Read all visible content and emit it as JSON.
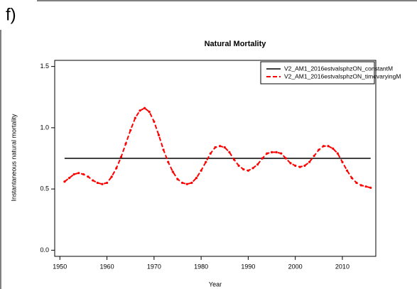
{
  "panel_label": "f)",
  "chart_data": {
    "type": "line",
    "title": "Natural Mortality",
    "x_label": "Year",
    "y_label": "Instantaneous natural mortality",
    "xlim": [
      1948.9,
      2017.1
    ],
    "xticks": [
      1950,
      1960,
      1970,
      1980,
      1990,
      2000,
      2010
    ],
    "ylim": [
      -0.05,
      1.55
    ],
    "yticks": [
      {
        "value": 0,
        "label": "0.0"
      },
      0.5,
      {
        "value": 1,
        "label": "1.0"
      },
      1.5
    ],
    "legend": "top-right",
    "series": [
      {
        "name": "V2_AM1_2016estvalsphzON_constantM",
        "color": "#000000",
        "dash": "solid",
        "x": [
          1951,
          2016
        ],
        "values": [
          0.75,
          0.75
        ]
      },
      {
        "name": "V2_AM1_2016estvalsphzON_timevaryingM",
        "color": "#ff0000",
        "dash": "dashed",
        "x": [
          1951,
          1952,
          1953,
          1954,
          1955,
          1956,
          1957,
          1958,
          1959,
          1960,
          1961,
          1962,
          1963,
          1964,
          1965,
          1966,
          1967,
          1968,
          1969,
          1970,
          1971,
          1972,
          1973,
          1974,
          1975,
          1976,
          1977,
          1978,
          1979,
          1980,
          1981,
          1982,
          1983,
          1984,
          1985,
          1986,
          1987,
          1988,
          1989,
          1990,
          1991,
          1992,
          1993,
          1994,
          1995,
          1996,
          1997,
          1998,
          1999,
          2000,
          2001,
          2002,
          2003,
          2004,
          2005,
          2006,
          2007,
          2008,
          2009,
          2010,
          2011,
          2012,
          2013,
          2014,
          2015,
          2016
        ],
        "values": [
          0.56,
          0.59,
          0.62,
          0.63,
          0.62,
          0.6,
          0.57,
          0.55,
          0.54,
          0.55,
          0.6,
          0.67,
          0.76,
          0.87,
          0.98,
          1.08,
          1.14,
          1.16,
          1.13,
          1.05,
          0.94,
          0.82,
          0.72,
          0.64,
          0.58,
          0.55,
          0.54,
          0.55,
          0.59,
          0.65,
          0.72,
          0.79,
          0.84,
          0.85,
          0.84,
          0.8,
          0.74,
          0.69,
          0.66,
          0.65,
          0.67,
          0.7,
          0.75,
          0.79,
          0.8,
          0.8,
          0.79,
          0.75,
          0.71,
          0.69,
          0.68,
          0.69,
          0.72,
          0.77,
          0.82,
          0.85,
          0.85,
          0.83,
          0.79,
          0.72,
          0.65,
          0.59,
          0.55,
          0.53,
          0.52,
          0.51
        ]
      }
    ]
  }
}
